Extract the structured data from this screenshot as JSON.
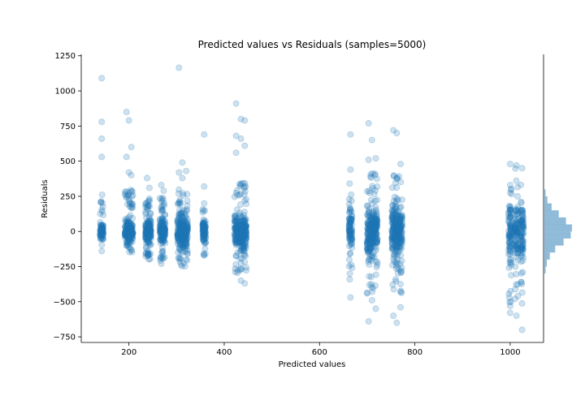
{
  "chart_data": {
    "type": "scatter",
    "title": "Predicted values vs Residuals (samples=5000)",
    "xlabel": "Predicted values",
    "ylabel": "Residuals",
    "xlim": [
      100,
      1070
    ],
    "ylim": [
      -790,
      1260
    ],
    "xticks": [
      200,
      400,
      600,
      800,
      1000
    ],
    "yticks": [
      -750,
      -500,
      -250,
      0,
      250,
      500,
      750,
      1000,
      1250
    ],
    "grid": false,
    "colors": {
      "points": "#1f77b4",
      "histogram": "#1f77b4"
    },
    "point_alpha": 0.22,
    "clusters": [
      {
        "x": [
          143
        ],
        "core": [
          -130,
          290
        ],
        "extremes": [
          1090,
          780,
          660,
          530,
          -140
        ]
      },
      {
        "x": [
          195,
          200,
          205
        ],
        "core": [
          -150,
          300
        ],
        "extremes": [
          850,
          790,
          600,
          530,
          420,
          400
        ]
      },
      {
        "x": [
          238,
          243
        ],
        "core": [
          -200,
          260
        ],
        "extremes": [
          380,
          310
        ]
      },
      {
        "x": [
          268,
          273
        ],
        "core": [
          -210,
          240
        ],
        "extremes": [
          330,
          290,
          -230
        ]
      },
      {
        "x": [
          305,
          312,
          320
        ],
        "core": [
          -260,
          300
        ],
        "extremes": [
          1165,
          490,
          430,
          420,
          380
        ]
      },
      {
        "x": [
          358
        ],
        "core": [
          -180,
          170
        ],
        "extremes": [
          690,
          320,
          200
        ]
      },
      {
        "x": [
          425,
          435,
          443
        ],
        "core": [
          -300,
          350
        ],
        "extremes": [
          910,
          800,
          790,
          680,
          660,
          610,
          560,
          -350,
          -370
        ]
      },
      {
        "x": [
          665
        ],
        "core": [
          -350,
          350
        ],
        "extremes": [
          690,
          440,
          -470
        ]
      },
      {
        "x": [
          703,
          710,
          718
        ],
        "core": [
          -450,
          420
        ],
        "extremes": [
          770,
          650,
          520,
          510,
          -490,
          -550,
          -640
        ]
      },
      {
        "x": [
          755,
          762,
          770
        ],
        "core": [
          -450,
          400
        ],
        "extremes": [
          720,
          700,
          480,
          -600,
          -650,
          -540
        ]
      },
      {
        "x": [
          1000,
          1013,
          1025
        ],
        "core": [
          -520,
          470
        ],
        "extremes": [
          480,
          470,
          450,
          -580,
          -600,
          -700,
          -530
        ]
      }
    ],
    "histogram": {
      "bin_edges": [
        -300,
        -250,
        -200,
        -150,
        -100,
        -50,
        0,
        50,
        100,
        150,
        200,
        250,
        300
      ],
      "counts": [
        2,
        4,
        9,
        18,
        32,
        44,
        46,
        36,
        24,
        12,
        5,
        2
      ]
    }
  }
}
